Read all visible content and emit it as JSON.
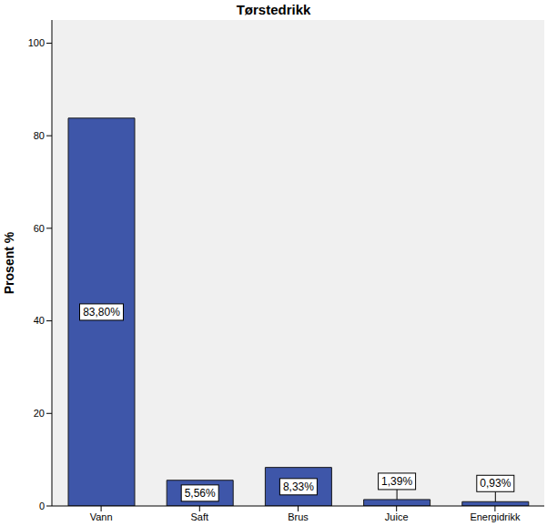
{
  "chart_data": {
    "type": "bar",
    "title": "Tørstedrikk",
    "y_label": "Prosent %",
    "categories": [
      "Vann",
      "Saft",
      "Brus",
      "Juice",
      "Energidrikk"
    ],
    "values": [
      83.8,
      5.56,
      8.33,
      1.39,
      0.93
    ],
    "value_labels": [
      "83,80%",
      "5,56%",
      "8,33%",
      "1,39%",
      "0,93%"
    ],
    "data_labels": true,
    "color": "#3e56a9",
    "ylim": [
      0,
      105
    ],
    "yticks": [
      0,
      20,
      40,
      60,
      80,
      100
    ],
    "grid": false
  }
}
